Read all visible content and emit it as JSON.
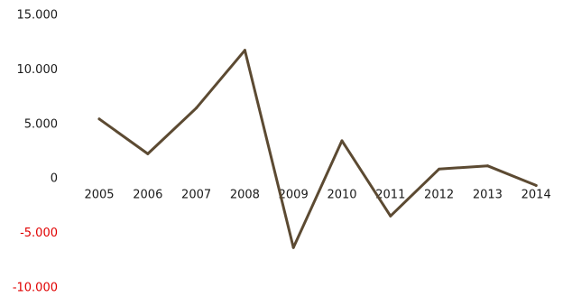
{
  "chart_data": {
    "type": "line",
    "title": "",
    "xlabel": "",
    "ylabel": "",
    "categories": [
      "2005",
      "2006",
      "2007",
      "2008",
      "2009",
      "2010",
      "2011",
      "2012",
      "2013",
      "2014"
    ],
    "series": [
      {
        "values": [
          5500,
          2300,
          6500,
          11800,
          -6300,
          3500,
          -3400,
          900,
          1200,
          -600
        ],
        "color": "#5c4a32"
      }
    ],
    "ylim": [
      -10000,
      15000
    ],
    "y_ticks": [
      {
        "value": 15000,
        "label": "15.000"
      },
      {
        "value": 10000,
        "label": "10.000"
      },
      {
        "value": 5000,
        "label": "5.000"
      },
      {
        "value": 0,
        "label": "0"
      },
      {
        "value": -5000,
        "label": "-5.000"
      },
      {
        "value": -10000,
        "label": "-10.000"
      }
    ],
    "positive_label_color": "#1a1a1a",
    "negative_label_color": "#e00000",
    "grid": false,
    "legend": "none"
  }
}
